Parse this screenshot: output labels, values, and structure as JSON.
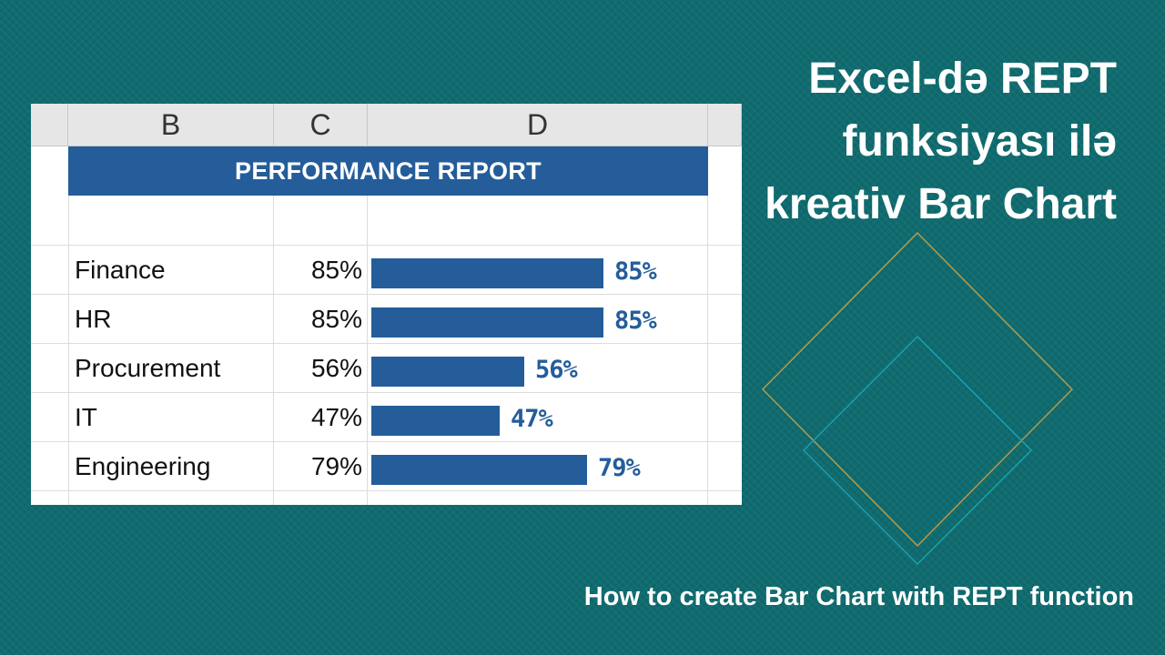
{
  "title": "Excel-də REPT funksiyası ilə kreativ Bar Chart",
  "subtitle": "How to create Bar Chart with REPT function",
  "sheet": {
    "columns": [
      "B",
      "C",
      "D"
    ],
    "banner": "PERFORMANCE REPORT",
    "rows": [
      {
        "dept": "Finance",
        "pct": "85%",
        "value": 85
      },
      {
        "dept": "HR",
        "pct": "85%",
        "value": 85
      },
      {
        "dept": "Procurement",
        "pct": "56%",
        "value": 56
      },
      {
        "dept": "IT",
        "pct": "47%",
        "value": 47
      },
      {
        "dept": "Engineering",
        "pct": "79%",
        "value": 79
      }
    ]
  },
  "colors": {
    "background": "#0f6b6f",
    "bar": "#245d9a",
    "diamond_gold": "#b59a4a",
    "diamond_teal": "#1aa0b0"
  }
}
